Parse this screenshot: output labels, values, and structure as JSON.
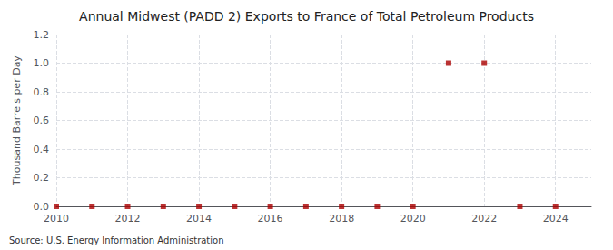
{
  "chart_data": {
    "type": "scatter",
    "title": "Annual Midwest (PADD 2) Exports to France of Total Petroleum Products",
    "ylabel": "Thousand Barrels per Day",
    "annotation": "Source: U.S. Energy Information Administration",
    "x": [
      2010,
      2011,
      2012,
      2013,
      2014,
      2015,
      2016,
      2017,
      2018,
      2019,
      2020,
      2021,
      2022,
      2023,
      2024
    ],
    "values": [
      0.0,
      0.0,
      0.0,
      0.0,
      0.0,
      0.0,
      0.0,
      0.0,
      0.0,
      0.0,
      0.0,
      1.0,
      1.0,
      0.0,
      0.0
    ],
    "color": "#aa0000",
    "marker": "square",
    "xlim": [
      2010,
      2025
    ],
    "xticks": [
      2010,
      2012,
      2014,
      2016,
      2018,
      2020,
      2022,
      2024
    ],
    "ylim": [
      0.0,
      1.2
    ],
    "yticks": [
      {
        "value": 0.0,
        "label": "0.0"
      },
      {
        "value": 0.2,
        "label": "0.2"
      },
      {
        "value": 0.4,
        "label": "0.4"
      },
      {
        "value": 0.6,
        "label": "0.6"
      },
      {
        "value": 0.8,
        "label": "0.8"
      },
      {
        "value": 1.0,
        "label": "1.0"
      },
      {
        "value": 1.2,
        "label": "1.2"
      }
    ],
    "grid": true
  }
}
